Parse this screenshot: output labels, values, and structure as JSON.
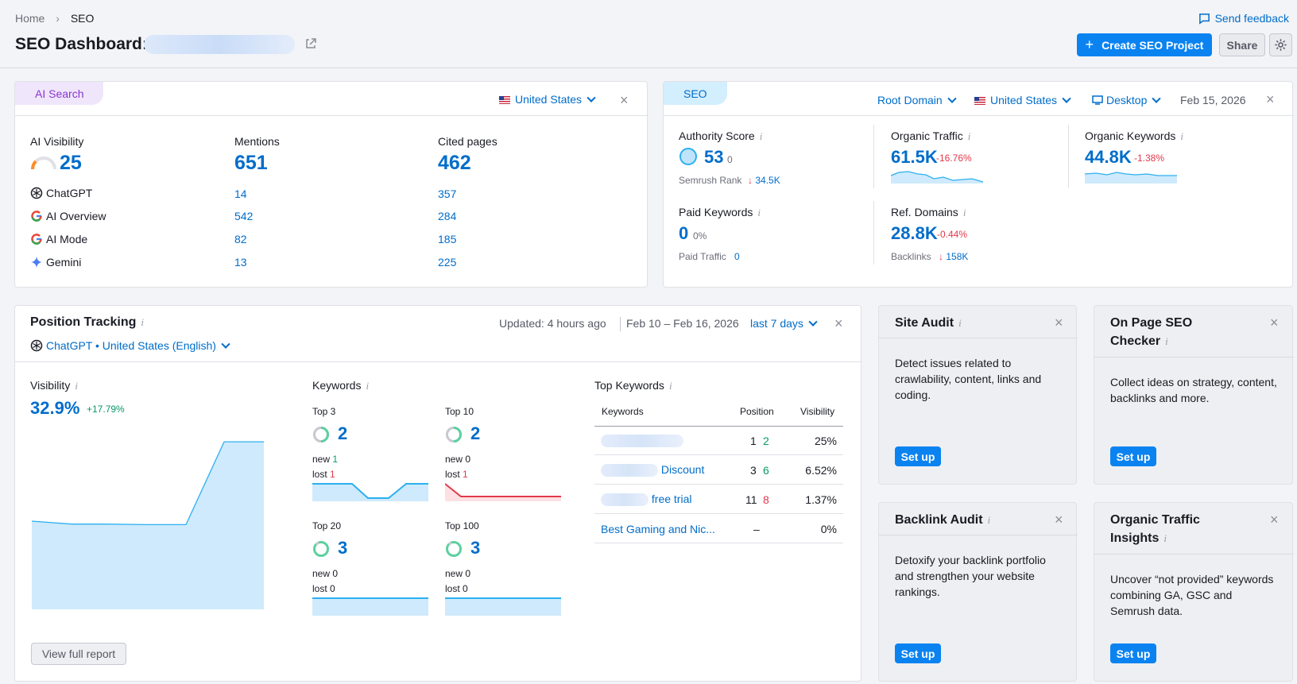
{
  "breadcrumb": {
    "home": "Home",
    "current": "SEO"
  },
  "page_title": "SEO Dashboard:",
  "header": {
    "feedback": "Send feedback",
    "create": "Create SEO Project",
    "share": "Share"
  },
  "ai_search": {
    "tab": "AI Search",
    "country": "United States",
    "cols": [
      {
        "label": "AI Visibility",
        "value": "25"
      },
      {
        "label": "Mentions",
        "value": "651"
      },
      {
        "label": "Cited pages",
        "value": "462"
      }
    ],
    "rows": [
      {
        "name": "ChatGPT",
        "mentions": "14",
        "cited": "357"
      },
      {
        "name": "AI Overview",
        "mentions": "542",
        "cited": "284"
      },
      {
        "name": "AI Mode",
        "mentions": "82",
        "cited": "185"
      },
      {
        "name": "Gemini",
        "mentions": "13",
        "cited": "225"
      }
    ],
    "visibility_fraction": 0.25
  },
  "seo": {
    "tab": "SEO",
    "root_domain": "Root Domain",
    "country": "United States",
    "device": "Desktop",
    "date": "Feb 15, 2026",
    "authority": {
      "label": "Authority Score",
      "value": "53",
      "delta": "0",
      "rank_label": "Semrush Rank",
      "rank_value": "34.5K"
    },
    "organic_traffic": {
      "label": "Organic Traffic",
      "value": "61.5K",
      "delta": "-16.76%"
    },
    "organic_keywords": {
      "label": "Organic Keywords",
      "value": "44.8K",
      "delta": "-1.38%"
    },
    "paid_keywords": {
      "label": "Paid Keywords",
      "value": "0",
      "delta": "0%",
      "sub_label": "Paid Traffic",
      "sub_value": "0"
    },
    "ref_domains": {
      "label": "Ref. Domains",
      "value": "28.8K",
      "delta": "-0.44%",
      "sub_label": "Backlinks",
      "sub_value": "158K"
    }
  },
  "position_tracking": {
    "title": "Position Tracking",
    "updated": "Updated: 4 hours ago",
    "date_range": "Feb 10 – Feb 16, 2026",
    "period": "last 7 days",
    "engine": "ChatGPT • United States (English)",
    "visibility": {
      "label": "Visibility",
      "value": "32.9%",
      "delta": "+17.79%",
      "series": [
        30,
        29,
        29,
        28.8,
        28.8,
        57,
        57
      ]
    },
    "keywords_label": "Keywords",
    "buckets": [
      {
        "label": "Top 3",
        "value": "2",
        "new": "1",
        "lost": "1",
        "new_label": "new",
        "lost_label": "lost"
      },
      {
        "label": "Top 10",
        "value": "2",
        "new": "0",
        "lost": "1",
        "new_label": "new",
        "lost_label": "lost"
      },
      {
        "label": "Top 20",
        "value": "3",
        "new": "0",
        "lost": "0",
        "new_label": "new",
        "lost_label": "lost"
      },
      {
        "label": "Top 100",
        "value": "3",
        "new": "0",
        "lost": "0",
        "new_label": "new",
        "lost_label": "lost"
      }
    ],
    "top_keywords": {
      "label": "Top Keywords",
      "headers": [
        "Keywords",
        "Position",
        "Visibility"
      ],
      "rows": [
        {
          "keyword": "",
          "pos": "1",
          "change": "2",
          "vis": "25%"
        },
        {
          "keyword": "Discount",
          "pos": "3",
          "change": "6",
          "vis": "6.52%"
        },
        {
          "keyword": "free trial",
          "pos": "11",
          "change": "8",
          "vis": "1.37%"
        },
        {
          "keyword": "Best Gaming and Nic...",
          "pos": "–",
          "change": "",
          "vis": "0%"
        }
      ]
    },
    "view_full": "View full report"
  },
  "widgets": [
    {
      "title": "Site Audit",
      "text": "Detect issues related to crawlability, content, links and coding.",
      "button": "Set up"
    },
    {
      "title": "On Page SEO Checker",
      "text": "Collect ideas on strategy, content, backlinks and more.",
      "button": "Set up"
    },
    {
      "title": "Backlink Audit",
      "text": "Detoxify your backlink portfolio and strengthen your website rankings.",
      "button": "Set up"
    },
    {
      "title": "Organic Traffic Insights",
      "text": "Uncover “not provided” keywords combining GA, GSC and Semrush data.",
      "button": "Set up"
    }
  ],
  "colors": {
    "accent": "#0a83f1",
    "link": "#006dca",
    "red": "#e2384a",
    "green": "#069a63",
    "chart_fill": "#cfeafc",
    "chart_line": "#2cb0f0"
  }
}
